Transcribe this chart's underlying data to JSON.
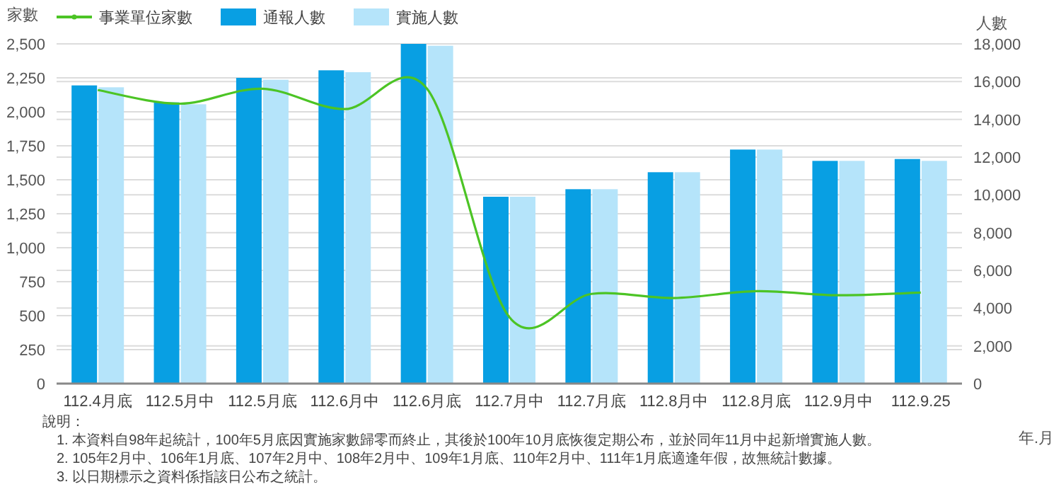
{
  "chart_data": {
    "type": "bar",
    "categories": [
      "112.4月底",
      "112.5月中",
      "112.5月底",
      "112.6月中",
      "112.6月底",
      "112.7月中",
      "112.7月底",
      "112.8月中",
      "112.8月底",
      "112.9月中",
      "112.9.25"
    ],
    "series": [
      {
        "name": "事業單位家數",
        "type": "line",
        "color": "#4cc425",
        "values": [
          2160,
          2060,
          2170,
          2020,
          2170,
          490,
          660,
          630,
          680,
          650,
          670
        ]
      },
      {
        "name": "通報人數",
        "axis": "y2",
        "color": "#089fe3",
        "values": [
          15800,
          14900,
          16200,
          16600,
          18000,
          9900,
          10300,
          11200,
          12400,
          11800,
          11900
        ]
      },
      {
        "name": "實施人數",
        "axis": "y2",
        "color": "#b5e4fa",
        "values": [
          15700,
          14800,
          16100,
          16500,
          17900,
          9900,
          10300,
          11200,
          12400,
          11800,
          11800
        ]
      }
    ],
    "ylabel": "家數",
    "y2label": "人數",
    "xlabel": "年.月",
    "ylim": [
      0,
      2500
    ],
    "yticks": [
      0,
      250,
      500,
      750,
      {
        "value": 1000,
        "label": "1,000"
      },
      {
        "value": 1250,
        "label": "1,250"
      },
      {
        "value": 1500,
        "label": "1,500"
      },
      {
        "value": 1750,
        "label": "1,750"
      },
      {
        "value": 2000,
        "label": "2,000"
      },
      {
        "value": 2250,
        "label": "2,250"
      },
      {
        "value": 2500,
        "label": "2,500"
      }
    ],
    "y2lim": [
      0,
      18000
    ],
    "y2ticks": [
      0,
      {
        "value": 2000,
        "label": "2,000"
      },
      {
        "value": 4000,
        "label": "4,000"
      },
      {
        "value": 6000,
        "label": "6,000"
      },
      {
        "value": 8000,
        "label": "8,000"
      },
      {
        "value": 10000,
        "label": "10,000"
      },
      {
        "value": 12000,
        "label": "12,000"
      },
      {
        "value": 14000,
        "label": "14,000"
      },
      {
        "value": 16000,
        "label": "16,000"
      },
      {
        "value": 18000,
        "label": "18,000"
      }
    ],
    "grid": true,
    "legend": "top left",
    "annotations": [
      "說明：",
      "1. 本資料自98年起統計，100年5月底因實施家數歸零而終止，其後於100年10月底恢復定期公布，並於同年11月中起新增實施人數。",
      "2. 105年2月中、106年1月底、107年2月中、108年2月中、109年1月底、110年2月中、111年1月底適逢年假，故無統計數據。",
      "3. 以日期標示之資料係指該日公布之統計。"
    ]
  }
}
